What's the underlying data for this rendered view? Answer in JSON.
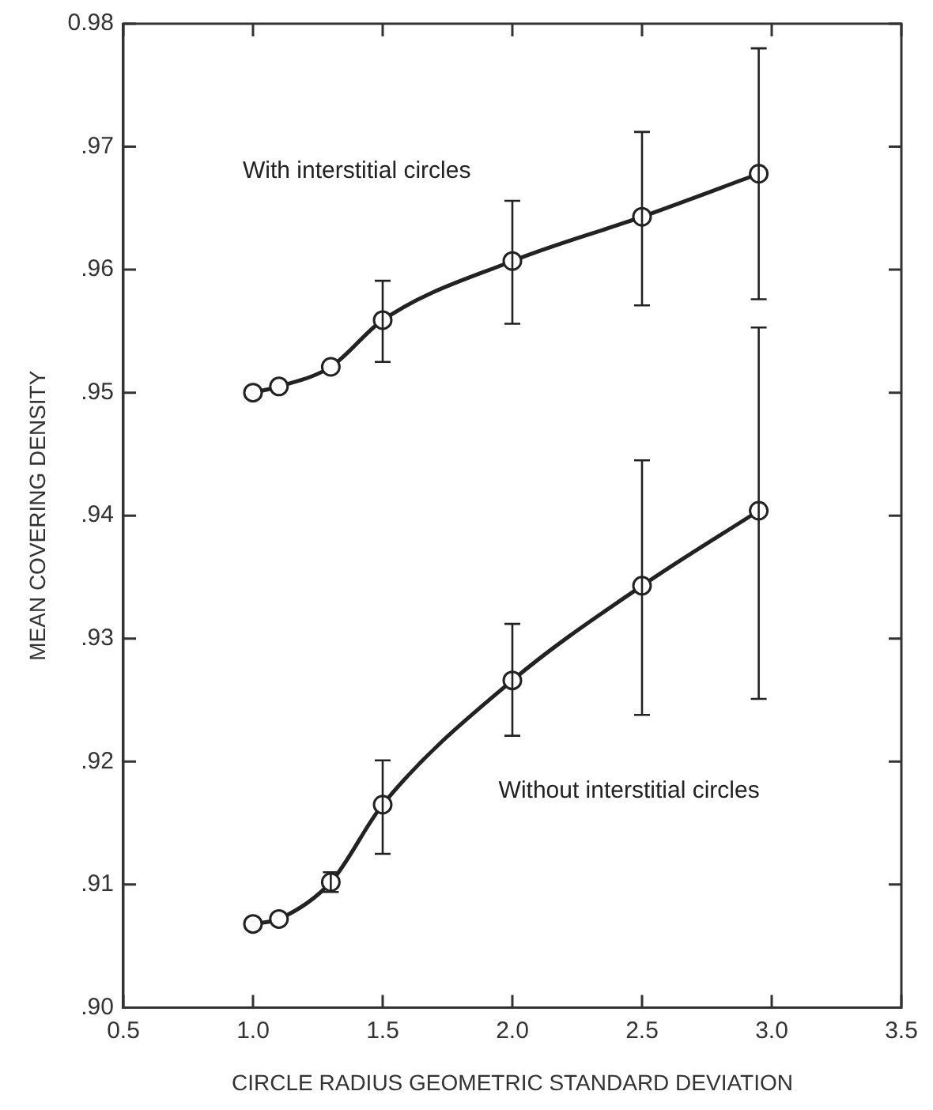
{
  "chart_data": {
    "type": "line",
    "xlabel": "CIRCLE RADIUS GEOMETRIC STANDARD DEVIATION",
    "ylabel": "MEAN COVERING DENSITY",
    "x": [
      1.0,
      1.1,
      1.3,
      1.5,
      2.0,
      2.5,
      2.95
    ],
    "series": [
      {
        "color": "#222222",
        "values": [
          0.95,
          0.9505,
          0.9521,
          0.9559,
          0.9607,
          0.9643,
          0.9678
        ],
        "errors": [
          null,
          null,
          null,
          [
            0.9525,
            0.9591
          ],
          [
            0.9556,
            0.9656
          ],
          [
            0.9571,
            0.9712
          ],
          [
            0.9576,
            0.978
          ]
        ]
      },
      {
        "color": "#222222",
        "values": [
          0.9068,
          0.9072,
          0.9102,
          0.9165,
          0.9266,
          0.9343,
          0.9404
        ],
        "errors": [
          null,
          null,
          [
            0.9094,
            0.911
          ],
          [
            0.9125,
            0.9201
          ],
          [
            0.9221,
            0.9312
          ],
          [
            0.9238,
            0.9445
          ],
          [
            0.9251,
            0.9553
          ]
        ]
      }
    ],
    "xlim": [
      0.5,
      3.5
    ],
    "xticks": [
      0.5,
      {
        "value": 1.0,
        "label": "1.0"
      },
      1.5,
      {
        "value": 2.0,
        "label": "2.0"
      },
      2.5,
      {
        "value": 3.0,
        "label": "3.0"
      },
      3.5
    ],
    "ylim": [
      0.9,
      0.98
    ],
    "yticks": [
      {
        "value": 0.9,
        "label": ".90"
      },
      {
        "value": 0.91,
        "label": ".91"
      },
      {
        "value": 0.92,
        "label": ".92"
      },
      {
        "value": 0.93,
        "label": ".93"
      },
      {
        "value": 0.94,
        "label": ".94"
      },
      {
        "value": 0.95,
        "label": ".95"
      },
      {
        "value": 0.96,
        "label": ".96"
      },
      {
        "value": 0.97,
        "label": ".97"
      },
      {
        "value": 0.98,
        "label": "0.98"
      }
    ],
    "annotations": [
      "With interstitial circles",
      "Without interstitial circles"
    ],
    "marker": "circle",
    "line_style": "solid",
    "grid": false,
    "legend": false
  }
}
